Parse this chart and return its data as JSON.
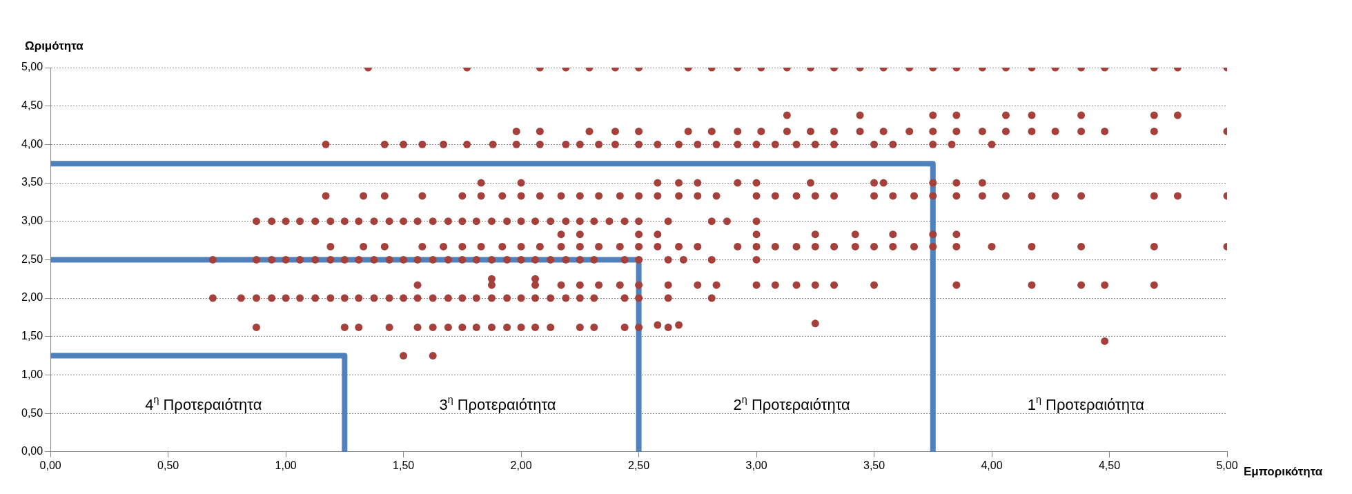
{
  "chart_data": {
    "type": "scatter",
    "xlabel": "Εμπορικότητα",
    "ylabel": "Ωριμότητα",
    "xlim": [
      0,
      5
    ],
    "ylim": [
      0,
      5
    ],
    "xticks": [
      {
        "value": 0,
        "label": "0,00"
      },
      {
        "value": 0.5,
        "label": "0,50"
      },
      {
        "value": 1,
        "label": "1,00"
      },
      {
        "value": 1.5,
        "label": "1,50"
      },
      {
        "value": 2,
        "label": "2,00"
      },
      {
        "value": 2.5,
        "label": "2,50"
      },
      {
        "value": 3,
        "label": "3,00"
      },
      {
        "value": 3.5,
        "label": "3,50"
      },
      {
        "value": 4,
        "label": "4,00"
      },
      {
        "value": 4.5,
        "label": "4,50"
      },
      {
        "value": 5,
        "label": "5,00"
      }
    ],
    "yticks": [
      {
        "value": 0,
        "label": "0,00"
      },
      {
        "value": 0.5,
        "label": "0,50"
      },
      {
        "value": 1,
        "label": "1,00"
      },
      {
        "value": 1.5,
        "label": "1,50"
      },
      {
        "value": 2,
        "label": "2,00"
      },
      {
        "value": 2.5,
        "label": "2,50"
      },
      {
        "value": 3,
        "label": "3,00"
      },
      {
        "value": 3.5,
        "label": "3,50"
      },
      {
        "value": 4,
        "label": "4,00"
      },
      {
        "value": 4.5,
        "label": "4,50"
      },
      {
        "value": 5,
        "label": "5,00"
      }
    ],
    "grid": "y",
    "legend": false,
    "marker": "circle",
    "series": [
      {
        "type": "line",
        "color": "#4f81bd",
        "marker": "none",
        "x": [
          0,
          3.75,
          3.75
        ],
        "values": [
          3.75,
          3.75,
          0
        ]
      },
      {
        "type": "line",
        "color": "#4f81bd",
        "marker": "none",
        "x": [
          0,
          2.5,
          2.5
        ],
        "values": [
          2.5,
          2.5,
          0
        ]
      },
      {
        "type": "line",
        "color": "#4f81bd",
        "marker": "none",
        "x": [
          0,
          1.25,
          1.25
        ],
        "values": [
          1.25,
          1.25,
          0
        ]
      },
      {
        "color": "#a5403a",
        "x": [
          1.35,
          1.77,
          2.08,
          2.19,
          2.29,
          2.4,
          2.5,
          2.71,
          2.81,
          2.92,
          3.02,
          3.13,
          3.23,
          3.33,
          3.44,
          3.54,
          3.65,
          3.75,
          3.85,
          3.96,
          4.06,
          4.17,
          4.27,
          4.38,
          4.48,
          4.69,
          4.79,
          5.0,
          3.13,
          3.44,
          3.75,
          3.85,
          4.06,
          4.17,
          4.38,
          4.69,
          4.79,
          1.98,
          2.08,
          2.29,
          2.4,
          2.5,
          2.71,
          2.81,
          2.92,
          3.02,
          3.13,
          3.23,
          3.33,
          3.44,
          3.54,
          3.65,
          3.75,
          3.85,
          3.96,
          4.06,
          4.17,
          4.27,
          4.38,
          4.48,
          4.69,
          5.0,
          1.17,
          1.42,
          1.5,
          1.58,
          1.67,
          1.77,
          1.88,
          1.98,
          2.08,
          2.19,
          2.25,
          2.33,
          2.4,
          2.5,
          2.58,
          2.67,
          2.75,
          2.83,
          2.92,
          3.0,
          3.08,
          3.17,
          3.25,
          3.33,
          3.5,
          3.58,
          3.75,
          3.83,
          4.0,
          1.83,
          2.0,
          2.58,
          2.67,
          2.75,
          2.92,
          3.0,
          3.23,
          3.5,
          3.54,
          3.75,
          3.85,
          3.96,
          1.17,
          1.33,
          1.42,
          1.58,
          1.75,
          1.83,
          1.92,
          2.0,
          2.08,
          2.17,
          2.25,
          2.33,
          2.42,
          2.5,
          2.58,
          2.67,
          2.75,
          2.83,
          3.0,
          3.08,
          3.17,
          3.25,
          3.33,
          3.5,
          3.58,
          3.67,
          3.75,
          3.85,
          3.96,
          4.06,
          4.17,
          4.27,
          4.38,
          4.69,
          4.79,
          5.0,
          0.875,
          0.94,
          1.0,
          1.06,
          1.125,
          1.19,
          1.25,
          1.31,
          1.375,
          1.44,
          1.5,
          1.56,
          1.625,
          1.69,
          1.75,
          1.81,
          1.875,
          1.94,
          2.0,
          2.06,
          2.125,
          2.19,
          2.25,
          2.31,
          2.375,
          2.44,
          2.5,
          2.625,
          2.81,
          2.875,
          3.0,
          2.17,
          2.25,
          2.5,
          2.58,
          3.0,
          3.25,
          3.42,
          3.58,
          3.75,
          3.85,
          1.19,
          1.33,
          1.42,
          1.58,
          1.67,
          1.75,
          1.83,
          1.92,
          2.0,
          2.08,
          2.17,
          2.25,
          2.33,
          2.42,
          2.5,
          2.58,
          2.67,
          2.75,
          2.92,
          3.0,
          3.08,
          3.17,
          3.25,
          3.33,
          3.42,
          3.5,
          3.58,
          3.67,
          3.75,
          3.85,
          4.0,
          4.17,
          4.38,
          4.69,
          5.0,
          0.69,
          0.875,
          0.94,
          1.0,
          1.06,
          1.125,
          1.19,
          1.25,
          1.31,
          1.375,
          1.44,
          1.5,
          1.56,
          1.625,
          1.69,
          1.75,
          1.81,
          1.875,
          1.94,
          2.0,
          2.06,
          2.125,
          2.19,
          2.25,
          2.31,
          2.44,
          2.5,
          2.625,
          2.69,
          2.81,
          3.0,
          1.56,
          1.875,
          2.06,
          2.17,
          2.25,
          2.33,
          2.42,
          2.5,
          2.625,
          2.75,
          2.83,
          3.0,
          3.08,
          3.17,
          3.25,
          3.33,
          3.5,
          3.85,
          4.17,
          4.38,
          4.48,
          4.69,
          0.69,
          0.81,
          0.875,
          0.94,
          1.0,
          1.06,
          1.125,
          1.19,
          1.25,
          1.31,
          1.375,
          1.44,
          1.5,
          1.56,
          1.625,
          1.69,
          1.75,
          1.81,
          1.875,
          1.94,
          2.0,
          2.06,
          2.125,
          2.19,
          2.25,
          2.31,
          2.44,
          2.5,
          2.625,
          2.81,
          1.875,
          2.06,
          0.875,
          1.25,
          1.31,
          1.44,
          1.56,
          1.625,
          1.69,
          1.75,
          1.81,
          1.875,
          1.94,
          2.0,
          2.06,
          2.125,
          2.25,
          2.31,
          2.44,
          2.5,
          2.58,
          2.625,
          2.67,
          3.25,
          1.5,
          1.625,
          4.48
        ],
        "values": [
          5,
          5,
          5,
          5,
          5,
          5,
          5,
          5,
          5,
          5,
          5,
          5,
          5,
          5,
          5,
          5,
          5,
          5,
          5,
          5,
          5,
          5,
          5,
          5,
          5,
          5,
          5,
          5,
          4.38,
          4.38,
          4.38,
          4.38,
          4.38,
          4.38,
          4.38,
          4.38,
          4.38,
          4.17,
          4.17,
          4.17,
          4.17,
          4.17,
          4.17,
          4.17,
          4.17,
          4.17,
          4.17,
          4.17,
          4.17,
          4.17,
          4.17,
          4.17,
          4.17,
          4.17,
          4.17,
          4.17,
          4.17,
          4.17,
          4.17,
          4.17,
          4.17,
          4.17,
          4,
          4,
          4,
          4,
          4,
          4,
          4,
          4,
          4,
          4,
          4,
          4,
          4,
          4,
          4,
          4,
          4,
          4,
          4,
          4,
          4,
          4,
          4,
          4,
          4,
          4,
          4,
          4,
          4,
          3.5,
          3.5,
          3.5,
          3.5,
          3.5,
          3.5,
          3.5,
          3.5,
          3.5,
          3.5,
          3.5,
          3.5,
          3.5,
          3.33,
          3.33,
          3.33,
          3.33,
          3.33,
          3.33,
          3.33,
          3.33,
          3.33,
          3.33,
          3.33,
          3.33,
          3.33,
          3.33,
          3.33,
          3.33,
          3.33,
          3.33,
          3.33,
          3.33,
          3.33,
          3.33,
          3.33,
          3.33,
          3.33,
          3.33,
          3.33,
          3.33,
          3.33,
          3.33,
          3.33,
          3.33,
          3.33,
          3.33,
          3.33,
          3.33,
          3,
          3,
          3,
          3,
          3,
          3,
          3,
          3,
          3,
          3,
          3,
          3,
          3,
          3,
          3,
          3,
          3,
          3,
          3,
          3,
          3,
          3,
          3,
          3,
          3,
          3,
          3,
          3,
          3,
          3,
          3,
          2.83,
          2.83,
          2.83,
          2.83,
          2.83,
          2.83,
          2.83,
          2.83,
          2.83,
          2.83,
          2.67,
          2.67,
          2.67,
          2.67,
          2.67,
          2.67,
          2.67,
          2.67,
          2.67,
          2.67,
          2.67,
          2.67,
          2.67,
          2.67,
          2.67,
          2.67,
          2.67,
          2.67,
          2.67,
          2.67,
          2.67,
          2.67,
          2.67,
          2.67,
          2.67,
          2.67,
          2.67,
          2.67,
          2.67,
          2.67,
          2.67,
          2.67,
          2.67,
          2.67,
          2.67,
          2.5,
          2.5,
          2.5,
          2.5,
          2.5,
          2.5,
          2.5,
          2.5,
          2.5,
          2.5,
          2.5,
          2.5,
          2.5,
          2.5,
          2.5,
          2.5,
          2.5,
          2.5,
          2.5,
          2.5,
          2.5,
          2.5,
          2.5,
          2.5,
          2.5,
          2.5,
          2.5,
          2.5,
          2.5,
          2.5,
          2.5,
          2.17,
          2.17,
          2.17,
          2.17,
          2.17,
          2.17,
          2.17,
          2.17,
          2.17,
          2.17,
          2.17,
          2.17,
          2.17,
          2.17,
          2.17,
          2.17,
          2.17,
          2.17,
          2.17,
          2.17,
          2.17,
          2.17,
          2,
          2,
          2,
          2,
          2,
          2,
          2,
          2,
          2,
          2,
          2,
          2,
          2,
          2,
          2,
          2,
          2,
          2,
          2,
          2,
          2,
          2,
          2,
          2,
          2,
          2,
          2,
          2,
          2,
          2,
          2.25,
          2.25,
          1.62,
          1.62,
          1.62,
          1.62,
          1.62,
          1.62,
          1.62,
          1.62,
          1.62,
          1.62,
          1.62,
          1.62,
          1.62,
          1.62,
          1.62,
          1.62,
          1.62,
          1.62,
          1.65,
          1.62,
          1.65,
          1.67,
          1.25,
          1.25,
          1.44
        ]
      }
    ],
    "annotations": [
      "4$^{η}$ Προτεραιότητα",
      "3$^{η}$ Προτεραιότητα",
      "2$^{η}$ Προτεραιότητα",
      "1$^{η}$ Προτεραιότητα"
    ]
  }
}
